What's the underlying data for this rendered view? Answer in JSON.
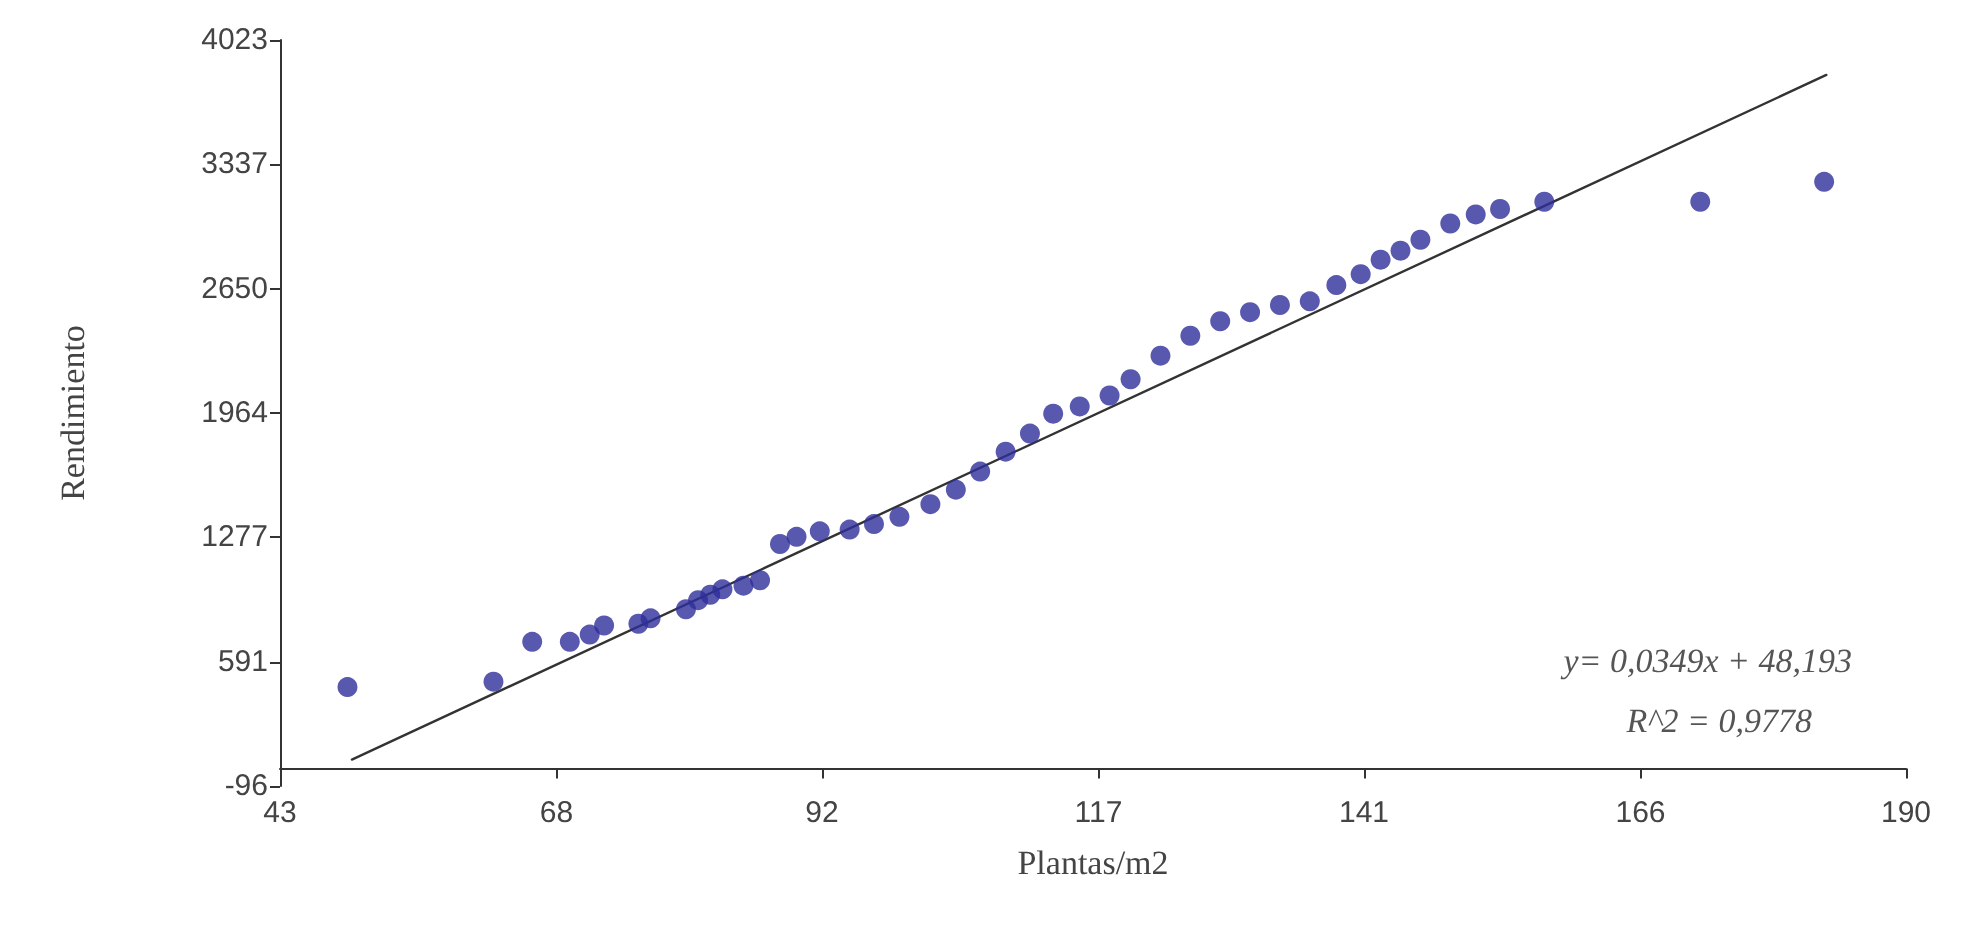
{
  "chart_data": {
    "type": "scatter",
    "xlabel": "Plantas/m2",
    "ylabel": "Rendimiento",
    "annotations": [
      "y= 0,0349x + 48,193",
      "R^2 = 0,9778"
    ],
    "xlim": [
      43,
      190
    ],
    "xticks": [
      43,
      68,
      92,
      117,
      141,
      166,
      190
    ],
    "ylim": [
      -96,
      4023
    ],
    "yticks": [
      -96,
      591,
      1277,
      1964,
      2650,
      3337,
      4023
    ],
    "grid": false,
    "marker": "circle",
    "series": [
      {
        "color": "#2e2e9a",
        "x": [
          49.1,
          62.3,
          65.8,
          69.2,
          71,
          72.3,
          75.4,
          76.5,
          79.7,
          80.8,
          81.9,
          83,
          84.9,
          86.4,
          88.2,
          89.7,
          91.8,
          94.5,
          96.7,
          99,
          101.8,
          104.1,
          106.3,
          108.6,
          110.8,
          112.9,
          115.3,
          118,
          119.9,
          122.6,
          125.3,
          128,
          130.7,
          133.4,
          136.1,
          138.5,
          140.7,
          142.5,
          144.3,
          146.1,
          148.8,
          151.1,
          153.3,
          157.3,
          171.4,
          182.6
        ],
        "values": [
          450,
          480,
          700,
          700,
          740,
          790,
          800,
          830,
          880,
          930,
          960,
          990,
          1010,
          1040,
          1240,
          1280,
          1310,
          1320,
          1350,
          1390,
          1460,
          1540,
          1640,
          1750,
          1850,
          1960,
          2000,
          2060,
          2150,
          2280,
          2390,
          2470,
          2520,
          2560,
          2580,
          2670,
          2730,
          2810,
          2860,
          2920,
          3010,
          3060,
          3090,
          3130,
          3130,
          3240
        ]
      },
      {
        "type": "line",
        "color": "#333333",
        "marker": "none",
        "line_style": "solid",
        "x": [
          49.5,
          182.8
        ],
        "values": [
          50,
          3830
        ]
      }
    ]
  }
}
